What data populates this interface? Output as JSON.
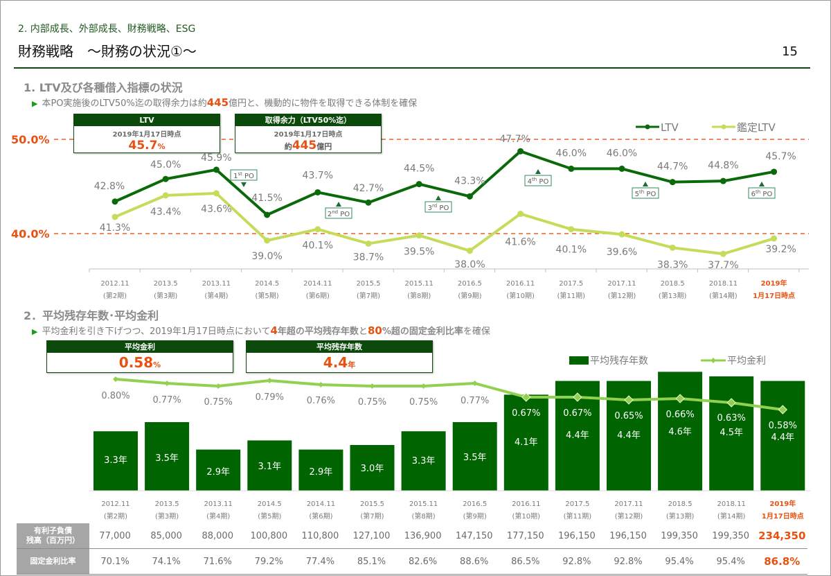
{
  "header": {
    "section": "2. 内部成長、外部成長、財務戦略、ESG",
    "title": "財務戦略　～財務の状況①～",
    "page_number": "15"
  },
  "section1": {
    "heading": "1. LTV及び各種借入指標の状況",
    "bullet_pre": "本PO実施後のLTV50%迄の取得余力は約",
    "bullet_em": "445",
    "bullet_post": "億円と、機動的に物件を取得できる体制を確保",
    "ltv_box": {
      "title": "LTV",
      "date": "2019年1月17日時点",
      "value": "45.7",
      "unit": "%"
    },
    "capacity_box": {
      "title": "取得余力（LTV50%迄）",
      "date": "2019年1月17日時点",
      "prefix": "約",
      "value": "445",
      "unit": "億円"
    },
    "ref_lines": [
      "50.0%",
      "40.0%"
    ]
  },
  "section2": {
    "heading": "2．平均残存年数･平均金利",
    "bullet_pre": "平均金利を引き下げつつ、2019年1月17日時点において",
    "bullet_em1": "4",
    "bullet_mid1": "年超の平均残存年数",
    "bullet_mid2": "と",
    "bullet_em2": "80",
    "bullet_mid3": "%超の固定金利比率",
    "bullet_post": "を確保",
    "rate_box": {
      "title": "平均金利",
      "value": "0.58",
      "unit": "%"
    },
    "years_box": {
      "title": "平均残存年数",
      "value": "4.4",
      "unit": "年"
    }
  },
  "categories": [
    [
      "2012.11",
      "(第2期)"
    ],
    [
      "2013.5",
      "(第3期)"
    ],
    [
      "2013.11",
      "(第4期)"
    ],
    [
      "2014.5",
      "(第5期)"
    ],
    [
      "2014.11",
      "(第6期)"
    ],
    [
      "2015.5",
      "(第7期)"
    ],
    [
      "2015.11",
      "(第8期)"
    ],
    [
      "2016.5",
      "(第9期)"
    ],
    [
      "2016.11",
      "(第10期)"
    ],
    [
      "2017.5",
      "(第11期)"
    ],
    [
      "2017.11",
      "(第12期)"
    ],
    [
      "2018.5",
      "(第13期)"
    ],
    [
      "2018.11",
      "(第14期)"
    ],
    [
      "2019年",
      "1月17日時点"
    ]
  ],
  "chart_data": [
    {
      "type": "line",
      "title": "LTV及び各種借入指標の状況",
      "categories": [
        "2012.11",
        "2013.5",
        "2013.11",
        "2014.5",
        "2014.11",
        "2015.5",
        "2015.11",
        "2016.5",
        "2016.11",
        "2017.5",
        "2017.11",
        "2018.5",
        "2018.11",
        "2019年1月17日時点"
      ],
      "series": [
        {
          "name": "LTV",
          "color": "#0a6a0a",
          "values": [
            42.8,
            45.0,
            45.9,
            41.5,
            43.7,
            42.7,
            44.5,
            43.3,
            47.7,
            46.0,
            46.0,
            44.7,
            44.8,
            45.7
          ]
        },
        {
          "name": "鑑定LTV",
          "color": "#c5dc5a",
          "values": [
            41.3,
            43.4,
            43.6,
            39.0,
            40.1,
            38.7,
            39.5,
            38.0,
            41.6,
            40.1,
            39.6,
            38.3,
            37.7,
            39.2
          ]
        }
      ],
      "reference_lines": [
        50.0,
        40.0
      ],
      "annotations": [
        {
          "label": "1st PO",
          "between": [
            "2013.11",
            "2014.5"
          ],
          "arrow": "down"
        },
        {
          "label": "2nd PO",
          "between": [
            "2014.11",
            "2015.5"
          ],
          "arrow": "up"
        },
        {
          "label": "3rd PO",
          "between": [
            "2015.11",
            "2016.5"
          ],
          "arrow": "up"
        },
        {
          "label": "4th PO",
          "at": "2016.11",
          "arrow": "up"
        },
        {
          "label": "5th PO",
          "between": [
            "2017.11",
            "2018.5"
          ],
          "arrow": "up"
        },
        {
          "label": "6th PO",
          "between": [
            "2018.11",
            "2019年1月17日時点"
          ],
          "arrow": "up"
        }
      ],
      "legend": "top-right",
      "unit": "%"
    },
    {
      "type": "bar",
      "title": "平均残存年数・平均金利",
      "categories": [
        "2012.11",
        "2013.5",
        "2013.11",
        "2014.5",
        "2014.11",
        "2015.5",
        "2015.11",
        "2016.5",
        "2016.11",
        "2017.5",
        "2017.11",
        "2018.5",
        "2018.11",
        "2019年1月17日時点"
      ],
      "series": [
        {
          "name": "平均残存年数",
          "type": "bar",
          "color": "#006400",
          "unit": "年",
          "values": [
            3.3,
            3.5,
            2.9,
            3.1,
            2.9,
            3.0,
            3.3,
            3.5,
            4.1,
            4.4,
            4.4,
            4.6,
            4.5,
            4.4
          ]
        },
        {
          "name": "平均金利",
          "type": "line",
          "color": "#92d050",
          "unit": "%",
          "values": [
            0.8,
            0.77,
            0.75,
            0.79,
            0.76,
            0.75,
            0.75,
            0.77,
            0.67,
            0.67,
            0.65,
            0.66,
            0.63,
            0.58
          ]
        }
      ],
      "legend": "top-right"
    }
  ],
  "table": {
    "rows": [
      {
        "label": "有利子負債\n残高（百万円）",
        "label1": "有利子負債",
        "label2": "残高（百万円）",
        "values": [
          "77,000",
          "85,000",
          "88,000",
          "100,800",
          "110,800",
          "127,100",
          "136,900",
          "147,150",
          "177,150",
          "196,150",
          "196,150",
          "199,350",
          "199,350",
          "234,350"
        ]
      },
      {
        "label1": "固定金利比率",
        "label2": "",
        "values": [
          "70.1%",
          "74.1%",
          "71.6%",
          "79.2%",
          "77.4%",
          "85.1%",
          "82.6%",
          "88.6%",
          "86.5%",
          "92.8%",
          "92.8%",
          "95.4%",
          "95.4%",
          "86.8%"
        ]
      }
    ]
  },
  "colors": {
    "dark_green": "#0b4a0b",
    "ltv": "#0a6a0a",
    "appraisal_ltv": "#c5dc5a",
    "accent": "#e8510f",
    "bar": "#006400",
    "rate_line": "#92d050"
  }
}
